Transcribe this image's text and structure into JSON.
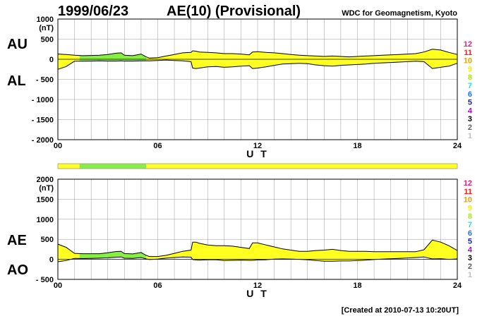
{
  "header": {
    "date": "1999/06/23",
    "title": "AE(10) (Provisional)",
    "source": "WDC for Geomagnetism, Kyoto"
  },
  "footer": {
    "created": "[Created at 2010-07-13 10:20UT]"
  },
  "station_count_scale": {
    "labels": [
      "12",
      "11",
      "10",
      "9",
      "8",
      "7",
      "6",
      "5",
      "4",
      "3",
      "2",
      "1"
    ],
    "colors": [
      "#e8207a",
      "#ff2020",
      "#f0a000",
      "#f0f000",
      "#a0f000",
      "#20e0e0",
      "#2070ff",
      "#2020c0",
      "#c000e0",
      "#000000",
      "#606060",
      "#c0c0c0"
    ]
  },
  "colors": {
    "fill_10_stations": "#ffff20",
    "fill_9_stations": "#88ee44",
    "line": "#000000",
    "grid": "#999999"
  },
  "chart_data": [
    {
      "type": "area",
      "panel": "AU/AL",
      "series_labels": [
        "AU",
        "AL"
      ],
      "ylabel": "(nT)",
      "xlabel": "U T",
      "xlim": [
        0,
        24
      ],
      "ylim": [
        -2000,
        1000
      ],
      "y_ticks": [
        1000,
        500,
        0,
        -500,
        -1000,
        -1500,
        -2000
      ],
      "y_tick_labels": [
        "1000",
        "500",
        "0",
        "- 500",
        "- 1000",
        "- 1500",
        "- 2000"
      ],
      "x_ticks": [
        0,
        6,
        12,
        18,
        24
      ],
      "x_tick_labels": [
        "00",
        "06",
        "12",
        "18",
        "24"
      ],
      "grid": true,
      "x": [
        0,
        0.5,
        1,
        1.5,
        2,
        2.5,
        3,
        3.5,
        3.8,
        4,
        4.5,
        5,
        5.3,
        5.5,
        6,
        6.5,
        7,
        7.5,
        8,
        8.1,
        8.3,
        8.5,
        9,
        9.5,
        10,
        10.5,
        11,
        11.5,
        11.7,
        12,
        12.5,
        13,
        13.5,
        14,
        14.5,
        15,
        15.5,
        16,
        16.5,
        17,
        17.5,
        18,
        18.5,
        19,
        19.5,
        20,
        20.5,
        21,
        21.5,
        22,
        22.5,
        23,
        23.5,
        24
      ],
      "AU": [
        130,
        120,
        100,
        90,
        95,
        100,
        120,
        150,
        160,
        100,
        90,
        130,
        60,
        30,
        40,
        80,
        120,
        160,
        170,
        210,
        200,
        180,
        170,
        160,
        140,
        140,
        130,
        110,
        180,
        190,
        170,
        160,
        140,
        120,
        100,
        90,
        80,
        70,
        80,
        70,
        60,
        70,
        80,
        90,
        100,
        110,
        120,
        130,
        140,
        180,
        250,
        230,
        170,
        120
      ],
      "AL": [
        -250,
        -180,
        -50,
        -50,
        -45,
        -40,
        -45,
        -45,
        -40,
        -45,
        -45,
        -40,
        -40,
        -40,
        -30,
        -20,
        -30,
        -40,
        -60,
        -220,
        -230,
        -220,
        -190,
        -180,
        -200,
        -190,
        -170,
        -160,
        -230,
        -220,
        -190,
        -150,
        -120,
        -110,
        -100,
        -110,
        -140,
        -160,
        -170,
        -150,
        -140,
        -130,
        -120,
        -100,
        -90,
        -80,
        -70,
        -60,
        -50,
        -60,
        -230,
        -200,
        -170,
        -100
      ],
      "station_count_bands": [
        {
          "from": 0,
          "to": 1.3,
          "stations": 10
        },
        {
          "from": 1.3,
          "to": 5.3,
          "stations": 9
        },
        {
          "from": 5.3,
          "to": 24,
          "stations": 10
        }
      ]
    },
    {
      "type": "area",
      "panel": "AE/AO",
      "series_labels": [
        "AE",
        "AO"
      ],
      "ylabel": "(nT)",
      "xlabel": "U T",
      "xlim": [
        0,
        24
      ],
      "ylim": [
        -500,
        2000
      ],
      "y_ticks": [
        2000,
        1500,
        1000,
        500,
        0,
        -500
      ],
      "y_tick_labels": [
        "2000",
        "1500",
        "1000",
        "500",
        "0",
        "- 500"
      ],
      "x_ticks": [
        0,
        6,
        12,
        18,
        24
      ],
      "x_tick_labels": [
        "00",
        "06",
        "12",
        "18",
        "24"
      ],
      "grid": true,
      "x": [
        0,
        0.5,
        1,
        1.5,
        2,
        2.5,
        3,
        3.5,
        3.8,
        4,
        4.5,
        5,
        5.3,
        5.5,
        6,
        6.5,
        7,
        7.5,
        8,
        8.1,
        8.3,
        8.5,
        9,
        9.5,
        10,
        10.5,
        11,
        11.5,
        11.7,
        12,
        12.5,
        13,
        13.5,
        14,
        14.5,
        15,
        15.5,
        16,
        16.5,
        17,
        17.5,
        18,
        18.5,
        19,
        19.5,
        20,
        20.5,
        21,
        21.5,
        22,
        22.5,
        23,
        23.5,
        24
      ],
      "AE": [
        380,
        300,
        150,
        140,
        140,
        140,
        165,
        195,
        200,
        145,
        135,
        170,
        100,
        70,
        70,
        100,
        150,
        200,
        230,
        430,
        430,
        400,
        360,
        340,
        340,
        330,
        300,
        270,
        410,
        410,
        360,
        310,
        260,
        230,
        200,
        200,
        220,
        230,
        250,
        220,
        200,
        200,
        200,
        190,
        190,
        190,
        190,
        190,
        190,
        240,
        480,
        430,
        340,
        220
      ],
      "AO": [
        -60,
        -30,
        25,
        20,
        25,
        30,
        38,
        52,
        60,
        28,
        23,
        45,
        10,
        -5,
        5,
        30,
        45,
        60,
        55,
        -5,
        -15,
        -20,
        -10,
        -10,
        -30,
        -25,
        -20,
        -25,
        -25,
        -15,
        -10,
        5,
        10,
        5,
        0,
        -10,
        -30,
        -45,
        -45,
        -40,
        -40,
        -30,
        -20,
        -5,
        5,
        15,
        25,
        35,
        45,
        60,
        10,
        15,
        0,
        10
      ],
      "station_count_bands": [
        {
          "from": 0,
          "to": 1.3,
          "stations": 10
        },
        {
          "from": 1.3,
          "to": 5.3,
          "stations": 9
        },
        {
          "from": 5.3,
          "to": 24,
          "stations": 10
        }
      ]
    }
  ]
}
